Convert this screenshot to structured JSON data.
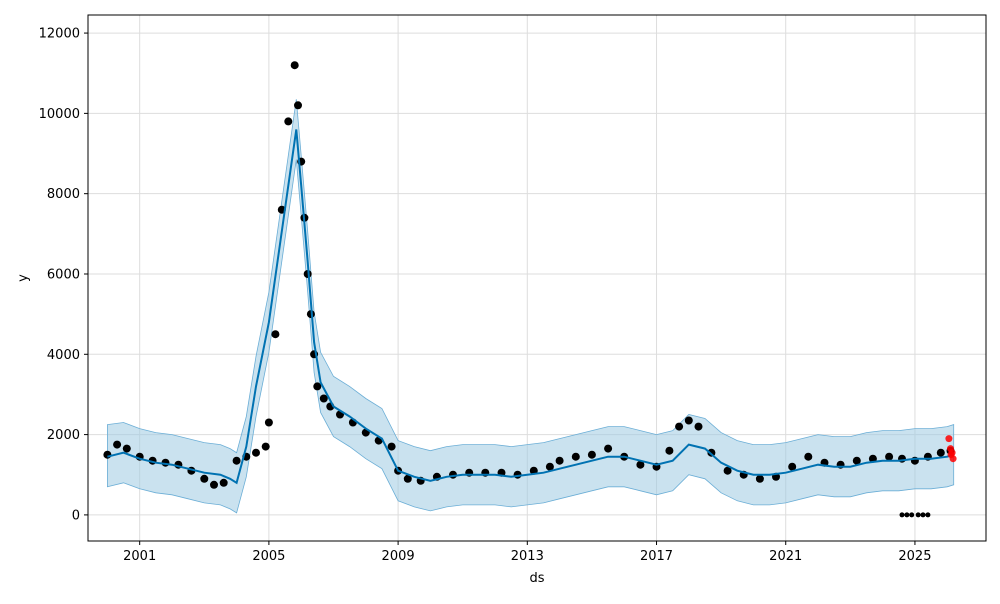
{
  "chart_data": {
    "type": "line",
    "title": "",
    "xlabel": "ds",
    "ylabel": "y",
    "xlim": [
      1999.4,
      2027.2
    ],
    "ylim": [
      -650,
      12450
    ],
    "grid": true,
    "x_ticks": [
      2001,
      2005,
      2009,
      2013,
      2017,
      2021,
      2025
    ],
    "x_tick_labels": [
      "2001",
      "2005",
      "2009",
      "2013",
      "2017",
      "2021",
      "2025"
    ],
    "y_ticks": [
      0,
      2000,
      4000,
      6000,
      8000,
      10000,
      12000
    ],
    "y_tick_labels": [
      "0",
      "2000",
      "4000",
      "6000",
      "8000",
      "10000",
      "12000"
    ],
    "colors": {
      "observed": "#000000",
      "forecast_line": "#0072B2",
      "interval_fill": "#9ecae1",
      "interval_edge": "#6baed6",
      "highlight_points": "#ff0000",
      "grid": "#dddddd"
    },
    "series": [
      {
        "role": "observed",
        "kind": "scatter",
        "x": [
          2000.0,
          2000.3,
          2000.6,
          2001.0,
          2001.4,
          2001.8,
          2002.2,
          2002.6,
          2003.0,
          2003.3,
          2003.6,
          2004.0,
          2004.3,
          2004.6,
          2004.9,
          2005.0,
          2005.2,
          2005.4,
          2005.6,
          2005.8,
          2005.9,
          2006.0,
          2006.1,
          2006.2,
          2006.3,
          2006.4,
          2006.5,
          2006.7,
          2006.9,
          2007.2,
          2007.6,
          2008.0,
          2008.4,
          2008.8,
          2009.0,
          2009.3,
          2009.7,
          2010.2,
          2010.7,
          2011.2,
          2011.7,
          2012.2,
          2012.7,
          2013.2,
          2013.7,
          2014.0,
          2014.5,
          2015.0,
          2015.5,
          2016.0,
          2016.5,
          2017.0,
          2017.4,
          2017.7,
          2018.0,
          2018.3,
          2018.7,
          2019.2,
          2019.7,
          2020.2,
          2020.7,
          2021.2,
          2021.7,
          2022.2,
          2022.7,
          2023.2,
          2023.7,
          2024.2,
          2024.6,
          2025.0,
          2025.4,
          2025.8,
          2026.1
        ],
        "y": [
          1500,
          1750,
          1650,
          1450,
          1350,
          1300,
          1250,
          1100,
          900,
          750,
          800,
          1350,
          1450,
          1550,
          1700,
          2300,
          4500,
          7600,
          9800,
          11200,
          10200,
          8800,
          7400,
          6000,
          5000,
          4000,
          3200,
          2900,
          2700,
          2500,
          2300,
          2050,
          1850,
          1700,
          1100,
          900,
          850,
          950,
          1000,
          1050,
          1050,
          1050,
          1000,
          1100,
          1200,
          1350,
          1450,
          1500,
          1650,
          1450,
          1250,
          1200,
          1600,
          2200,
          2350,
          2200,
          1550,
          1100,
          1000,
          900,
          950,
          1200,
          1450,
          1300,
          1250,
          1350,
          1400,
          1450,
          1400,
          1350,
          1450,
          1550,
          1600
        ]
      },
      {
        "role": "observed_outliers",
        "kind": "scatter",
        "x": [
          2024.6,
          2024.75,
          2024.9,
          2025.1,
          2025.25,
          2025.4
        ],
        "y": [
          0,
          0,
          0,
          0,
          0,
          0
        ]
      },
      {
        "role": "trend_forecast",
        "kind": "line",
        "x": [
          2000.0,
          2000.5,
          2001.0,
          2001.5,
          2002.0,
          2002.5,
          2003.0,
          2003.5,
          2003.8,
          2004.0,
          2004.3,
          2004.6,
          2005.0,
          2005.3,
          2005.6,
          2005.85,
          2006.0,
          2006.2,
          2006.4,
          2006.6,
          2007.0,
          2007.5,
          2008.0,
          2008.5,
          2009.0,
          2009.5,
          2010.0,
          2010.5,
          2011.0,
          2011.5,
          2012.0,
          2012.5,
          2013.0,
          2013.5,
          2014.0,
          2014.5,
          2015.0,
          2015.5,
          2016.0,
          2016.5,
          2017.0,
          2017.5,
          2018.0,
          2018.5,
          2019.0,
          2019.5,
          2020.0,
          2020.5,
          2021.0,
          2021.5,
          2022.0,
          2022.5,
          2023.0,
          2023.5,
          2024.0,
          2024.5,
          2025.0,
          2025.5,
          2026.0,
          2026.2
        ],
        "y": [
          1450,
          1550,
          1400,
          1300,
          1250,
          1150,
          1050,
          1000,
          900,
          800,
          1700,
          3200,
          4800,
          6500,
          8200,
          9600,
          8200,
          6300,
          4300,
          3300,
          2700,
          2450,
          2150,
          1900,
          1100,
          950,
          850,
          950,
          1000,
          1000,
          1000,
          950,
          1000,
          1050,
          1150,
          1250,
          1350,
          1450,
          1450,
          1350,
          1250,
          1350,
          1750,
          1650,
          1300,
          1100,
          1000,
          1000,
          1050,
          1150,
          1250,
          1200,
          1200,
          1300,
          1350,
          1350,
          1400,
          1400,
          1450,
          1500
        ]
      },
      {
        "role": "uncertainty_interval",
        "kind": "area",
        "x": [
          2000.0,
          2000.5,
          2001.0,
          2001.5,
          2002.0,
          2002.5,
          2003.0,
          2003.5,
          2003.8,
          2004.0,
          2004.3,
          2004.6,
          2005.0,
          2005.3,
          2005.6,
          2005.85,
          2006.0,
          2006.2,
          2006.4,
          2006.6,
          2007.0,
          2007.5,
          2008.0,
          2008.5,
          2009.0,
          2009.5,
          2010.0,
          2010.5,
          2011.0,
          2011.5,
          2012.0,
          2012.5,
          2013.0,
          2013.5,
          2014.0,
          2014.5,
          2015.0,
          2015.5,
          2016.0,
          2016.5,
          2017.0,
          2017.5,
          2018.0,
          2018.5,
          2019.0,
          2019.5,
          2020.0,
          2020.5,
          2021.0,
          2021.5,
          2022.0,
          2022.5,
          2023.0,
          2023.5,
          2024.0,
          2024.5,
          2025.0,
          2025.5,
          2026.0,
          2026.2
        ],
        "upper": [
          2250,
          2300,
          2150,
          2050,
          2000,
          1900,
          1800,
          1750,
          1650,
          1550,
          2450,
          3950,
          5550,
          7250,
          8950,
          10350,
          8950,
          7050,
          5050,
          4050,
          3450,
          3200,
          2900,
          2650,
          1850,
          1700,
          1600,
          1700,
          1750,
          1750,
          1750,
          1700,
          1750,
          1800,
          1900,
          2000,
          2100,
          2200,
          2200,
          2100,
          2000,
          2100,
          2500,
          2400,
          2050,
          1850,
          1750,
          1750,
          1800,
          1900,
          2000,
          1950,
          1950,
          2050,
          2100,
          2100,
          2150,
          2150,
          2200,
          2250
        ],
        "lower": [
          700,
          800,
          650,
          550,
          500,
          400,
          300,
          250,
          150,
          50,
          950,
          2450,
          4050,
          5750,
          7450,
          8850,
          7450,
          5550,
          3550,
          2550,
          1950,
          1700,
          1400,
          1150,
          350,
          200,
          100,
          200,
          250,
          250,
          250,
          200,
          250,
          300,
          400,
          500,
          600,
          700,
          700,
          600,
          500,
          600,
          1000,
          900,
          550,
          350,
          250,
          250,
          300,
          400,
          500,
          450,
          450,
          550,
          600,
          600,
          650,
          650,
          700,
          750
        ]
      },
      {
        "role": "highlighted_recent",
        "kind": "scatter",
        "x": [
          2026.05,
          2026.1,
          2026.12,
          2026.15,
          2026.18
        ],
        "y": [
          1900,
          1650,
          1500,
          1550,
          1400
        ]
      }
    ]
  }
}
